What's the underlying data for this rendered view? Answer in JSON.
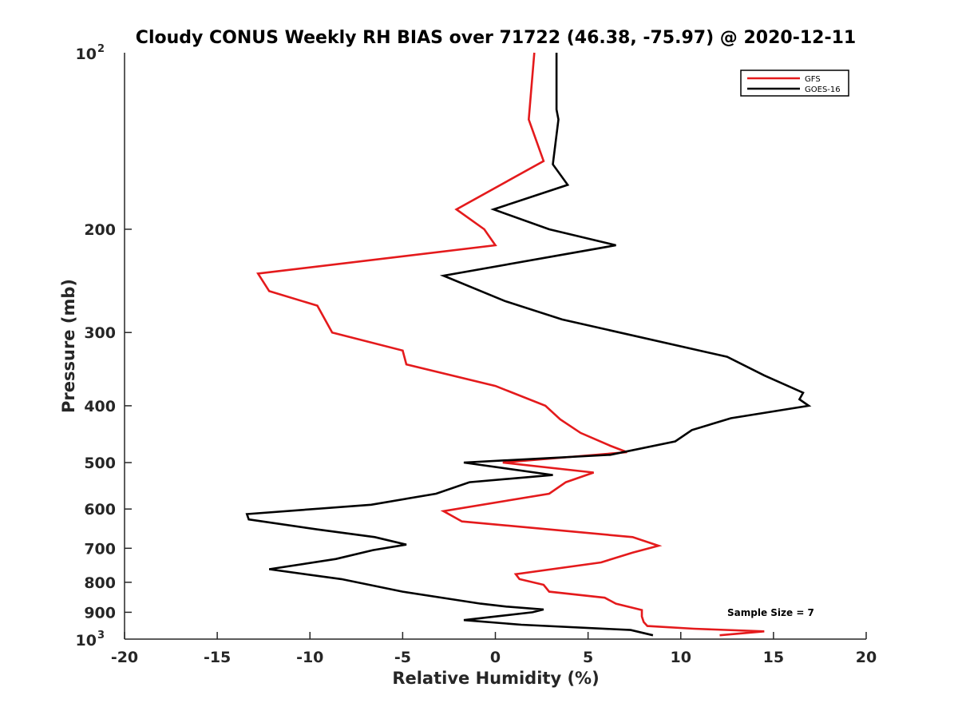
{
  "chart_data": {
    "type": "line",
    "title": "Cloudy CONUS Weekly RH BIAS over 71722 (46.38, -75.97) @ 2020-12-11",
    "xlabel": "Relative Humidity (%)",
    "ylabel": "Pressure (mb)",
    "xlim": [
      -20,
      20
    ],
    "ylim": [
      100,
      1000
    ],
    "yscale": "log",
    "yreversed": true,
    "xticks": [
      -20,
      -15,
      -10,
      -5,
      0,
      5,
      10,
      15,
      20
    ],
    "xtick_labels": [
      "-20",
      "-15",
      "-10",
      "-5",
      "0",
      "5",
      "10",
      "15",
      "20"
    ],
    "yticks": [
      200,
      300,
      400,
      500,
      600,
      700,
      800,
      900
    ],
    "ytick_labels": [
      "200",
      "300",
      "400",
      "500",
      "600",
      "700",
      "800",
      "900"
    ],
    "ytick_end_labels": {
      "top_base": "10",
      "top_exp": "2",
      "bottom_base": "10",
      "bottom_exp": "3"
    },
    "legend_position": "top-right",
    "series": [
      {
        "name": "GFS",
        "color": "#e41a1c",
        "x": [
          2.1,
          1.8,
          2.6,
          -2.1,
          -0.6,
          0.0,
          -12.8,
          -12.2,
          -9.6,
          -8.8,
          -5.0,
          -4.8,
          0.0,
          2.7,
          3.5,
          4.6,
          6.2,
          7.1,
          0.4,
          5.3,
          3.8,
          2.9,
          -2.8,
          -1.8,
          7.4,
          8.8,
          7.4,
          5.7,
          1.1,
          1.3,
          2.6,
          2.9,
          5.9,
          6.5,
          7.9,
          7.9,
          8.0,
          8.2,
          10.7,
          14.5,
          12.1
        ],
        "y": [
          100,
          130,
          153,
          185,
          200,
          213,
          238,
          255,
          270,
          300,
          322,
          340,
          370,
          400,
          422,
          445,
          468,
          480,
          500,
          520,
          540,
          565,
          605,
          630,
          670,
          693,
          712,
          740,
          775,
          790,
          808,
          830,
          850,
          870,
          892,
          915,
          935,
          950,
          960,
          970,
          985
        ]
      },
      {
        "name": "GOES-16",
        "color": "#000000",
        "x": [
          3.3,
          3.3,
          3.4,
          3.1,
          3.9,
          -0.1,
          2.9,
          6.5,
          -2.8,
          0.5,
          3.6,
          12.5,
          14.5,
          16.6,
          16.4,
          16.9,
          12.7,
          10.6,
          9.7,
          6.2,
          -1.7,
          3.1,
          -1.4,
          -3.2,
          -6.7,
          -13.4,
          -13.3,
          -9.6,
          -6.5,
          -4.8,
          -6.6,
          -8.6,
          -12.2,
          -8.3,
          -5.0,
          -0.8,
          0.6,
          2.6,
          2.0,
          0.0,
          -1.7,
          1.4,
          7.3,
          8.5
        ],
        "y": [
          100,
          125,
          130,
          155,
          168,
          185,
          200,
          213,
          240,
          265,
          285,
          330,
          355,
          380,
          390,
          400,
          420,
          440,
          460,
          485,
          500,
          525,
          540,
          565,
          590,
          612,
          625,
          650,
          670,
          690,
          705,
          730,
          760,
          790,
          830,
          870,
          880,
          890,
          900,
          915,
          928,
          945,
          965,
          985
        ]
      }
    ],
    "annotation": "Sample Size = 7"
  }
}
